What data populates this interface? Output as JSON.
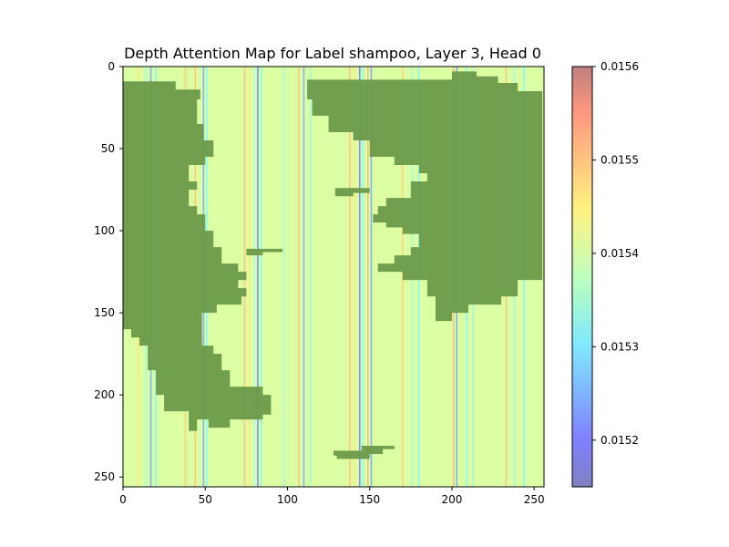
{
  "chart_data": {
    "type": "heatmap",
    "title": "Depth Attention Map for Label shampoo, Layer 3, Head 0",
    "xlabel": "",
    "ylabel": "",
    "xlim": [
      0,
      256
    ],
    "ylim": [
      256,
      0
    ],
    "x_ticks": [
      0,
      50,
      100,
      150,
      200,
      250
    ],
    "y_ticks": [
      0,
      50,
      100,
      150,
      200,
      250
    ],
    "colorbar": {
      "min": 0.01515,
      "max": 0.0156,
      "ticks": [
        0.0152,
        0.0153,
        0.0154,
        0.0155,
        0.0156
      ],
      "tick_labels": [
        "0.0152",
        "0.0153",
        "0.0154",
        "0.0155",
        "0.0156"
      ],
      "colormap": "jet",
      "alpha": 0.5
    },
    "background_value": 0.0154,
    "column_values": [
      {
        "x": 9,
        "value": 0.01545
      },
      {
        "x": 14,
        "value": 0.01535
      },
      {
        "x": 17,
        "value": 0.01525
      },
      {
        "x": 20,
        "value": 0.01532
      },
      {
        "x": 38,
        "value": 0.01547
      },
      {
        "x": 44,
        "value": 0.01548
      },
      {
        "x": 49,
        "value": 0.01525
      },
      {
        "x": 51,
        "value": 0.01532
      },
      {
        "x": 74,
        "value": 0.01548
      },
      {
        "x": 77,
        "value": 0.01545
      },
      {
        "x": 80,
        "value": 0.01535
      },
      {
        "x": 82,
        "value": 0.01522
      },
      {
        "x": 84,
        "value": 0.01533
      },
      {
        "x": 98,
        "value": 0.01535
      },
      {
        "x": 107,
        "value": 0.01548
      },
      {
        "x": 110,
        "value": 0.01525
      },
      {
        "x": 114,
        "value": 0.01535
      },
      {
        "x": 138,
        "value": 0.01548
      },
      {
        "x": 141,
        "value": 0.01545
      },
      {
        "x": 144,
        "value": 0.01522
      },
      {
        "x": 146,
        "value": 0.01532
      },
      {
        "x": 149,
        "value": 0.01549
      },
      {
        "x": 151,
        "value": 0.01525
      },
      {
        "x": 170,
        "value": 0.01547
      },
      {
        "x": 176,
        "value": 0.01535
      },
      {
        "x": 180,
        "value": 0.01532
      },
      {
        "x": 201,
        "value": 0.01549
      },
      {
        "x": 203,
        "value": 0.01525
      },
      {
        "x": 209,
        "value": 0.01532
      },
      {
        "x": 213,
        "value": 0.01535
      },
      {
        "x": 233,
        "value": 0.01548
      },
      {
        "x": 238,
        "value": 0.01535
      },
      {
        "x": 244,
        "value": 0.01532
      }
    ],
    "overlay_color": "#6a9a4a",
    "overlay_regions": [
      [
        [
          0,
          9
        ],
        [
          32,
          9
        ],
        [
          32,
          14
        ],
        [
          47,
          14
        ],
        [
          47,
          20
        ],
        [
          45,
          20
        ],
        [
          45,
          35
        ],
        [
          49,
          35
        ],
        [
          49,
          45
        ],
        [
          55,
          45
        ],
        [
          55,
          55
        ],
        [
          50,
          55
        ],
        [
          50,
          60
        ],
        [
          40,
          60
        ],
        [
          40,
          70
        ],
        [
          45,
          70
        ],
        [
          45,
          75
        ],
        [
          40,
          75
        ],
        [
          40,
          85
        ],
        [
          45,
          85
        ],
        [
          45,
          90
        ],
        [
          50,
          90
        ],
        [
          50,
          100
        ],
        [
          55,
          100
        ],
        [
          55,
          110
        ],
        [
          60,
          110
        ],
        [
          60,
          120
        ],
        [
          70,
          120
        ],
        [
          70,
          125
        ],
        [
          75,
          125
        ],
        [
          75,
          130
        ],
        [
          70,
          130
        ],
        [
          70,
          135
        ],
        [
          75,
          135
        ],
        [
          75,
          140
        ],
        [
          72,
          140
        ],
        [
          72,
          145
        ],
        [
          57,
          145
        ],
        [
          57,
          150
        ],
        [
          48,
          150
        ],
        [
          48,
          170
        ],
        [
          55,
          170
        ],
        [
          55,
          175
        ],
        [
          60,
          175
        ],
        [
          60,
          185
        ],
        [
          65,
          185
        ],
        [
          65,
          195
        ],
        [
          85,
          195
        ],
        [
          85,
          200
        ],
        [
          90,
          200
        ],
        [
          90,
          212
        ],
        [
          85,
          212
        ],
        [
          85,
          215
        ],
        [
          65,
          215
        ],
        [
          65,
          220
        ],
        [
          52,
          220
        ],
        [
          52,
          215
        ],
        [
          45,
          215
        ],
        [
          45,
          222
        ],
        [
          40,
          222
        ],
        [
          40,
          210
        ],
        [
          25,
          210
        ],
        [
          25,
          200
        ],
        [
          20,
          200
        ],
        [
          20,
          185
        ],
        [
          15,
          185
        ],
        [
          15,
          170
        ],
        [
          10,
          170
        ],
        [
          10,
          165
        ],
        [
          5,
          165
        ],
        [
          5,
          160
        ],
        [
          0,
          160
        ]
      ],
      [
        [
          112,
          8
        ],
        [
          200,
          8
        ],
        [
          200,
          3
        ],
        [
          215,
          3
        ],
        [
          215,
          6
        ],
        [
          228,
          6
        ],
        [
          228,
          10
        ],
        [
          240,
          10
        ],
        [
          240,
          15
        ],
        [
          255,
          15
        ],
        [
          255,
          30
        ],
        [
          255,
          30
        ],
        [
          255,
          40
        ],
        [
          255,
          45
        ],
        [
          255,
          90
        ],
        [
          255,
          90
        ],
        [
          255,
          130
        ],
        [
          240,
          130
        ],
        [
          240,
          140
        ],
        [
          230,
          140
        ],
        [
          230,
          145
        ],
        [
          210,
          145
        ],
        [
          210,
          150
        ],
        [
          200,
          150
        ],
        [
          200,
          155
        ],
        [
          190,
          155
        ],
        [
          190,
          140
        ],
        [
          185,
          140
        ],
        [
          185,
          130
        ],
        [
          170,
          130
        ],
        [
          170,
          125
        ],
        [
          155,
          125
        ],
        [
          155,
          120
        ],
        [
          165,
          120
        ],
        [
          165,
          115
        ],
        [
          175,
          115
        ],
        [
          175,
          110
        ],
        [
          180,
          110
        ],
        [
          180,
          102
        ],
        [
          170,
          102
        ],
        [
          170,
          98
        ],
        [
          160,
          98
        ],
        [
          160,
          95
        ],
        [
          152,
          95
        ],
        [
          152,
          90
        ],
        [
          155,
          90
        ],
        [
          155,
          85
        ],
        [
          160,
          85
        ],
        [
          160,
          80
        ],
        [
          175,
          80
        ],
        [
          175,
          70
        ],
        [
          185,
          70
        ],
        [
          185,
          65
        ],
        [
          180,
          65
        ],
        [
          180,
          60
        ],
        [
          165,
          60
        ],
        [
          165,
          55
        ],
        [
          150,
          55
        ],
        [
          150,
          45
        ],
        [
          140,
          45
        ],
        [
          140,
          40
        ],
        [
          125,
          40
        ],
        [
          125,
          30
        ],
        [
          115,
          30
        ],
        [
          115,
          20
        ],
        [
          112,
          20
        ]
      ],
      [
        [
          129,
          74
        ],
        [
          150,
          74
        ],
        [
          150,
          77
        ],
        [
          140,
          77
        ],
        [
          140,
          79
        ],
        [
          129,
          79
        ]
      ],
      [
        [
          75,
          111
        ],
        [
          97,
          111
        ],
        [
          97,
          113
        ],
        [
          85,
          113
        ],
        [
          85,
          115
        ],
        [
          75,
          115
        ]
      ],
      [
        [
          128,
          234
        ],
        [
          145,
          234
        ],
        [
          145,
          231
        ],
        [
          165,
          231
        ],
        [
          165,
          233
        ],
        [
          158,
          233
        ],
        [
          158,
          236
        ],
        [
          150,
          236
        ],
        [
          150,
          239
        ],
        [
          130,
          239
        ],
        [
          130,
          237
        ],
        [
          128,
          237
        ]
      ]
    ]
  }
}
